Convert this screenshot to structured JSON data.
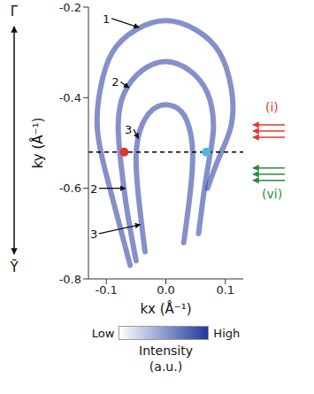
{
  "chart_data": {
    "type": "line",
    "xlabel": "kx (Å⁻¹)",
    "ylabel": "ky (Å⁻¹)",
    "xlim": [
      -0.13,
      0.13
    ],
    "ylim": [
      -0.8,
      -0.2
    ],
    "xticks": [
      -0.1,
      {
        "value": 0,
        "label": "0.0"
      },
      0.1
    ],
    "yticks": [
      -0.2,
      -0.4,
      -0.6,
      -0.8
    ],
    "ky_ends": {
      "top": "Γ̄",
      "bottom": "Ȳ"
    },
    "series": [
      {
        "name": "1",
        "color": "#3346a8",
        "x": [
          -0.06,
          -0.08,
          -0.1,
          -0.115,
          -0.11,
          -0.09,
          -0.05,
          0,
          0.05,
          0.09,
          0.11,
          0.11,
          0.09,
          0.07
        ],
        "values": [
          -0.77,
          -0.67,
          -0.57,
          -0.47,
          -0.38,
          -0.3,
          -0.25,
          -0.23,
          -0.25,
          -0.3,
          -0.38,
          -0.46,
          -0.53,
          -0.6
        ]
      },
      {
        "name": "2",
        "color": "#3346a8",
        "x": [
          -0.05,
          -0.065,
          -0.075,
          -0.08,
          -0.07,
          -0.04,
          0,
          0.04,
          0.07,
          0.08,
          0.075,
          0.065,
          0.055
        ],
        "values": [
          -0.76,
          -0.65,
          -0.55,
          -0.46,
          -0.39,
          -0.34,
          -0.32,
          -0.34,
          -0.39,
          -0.46,
          -0.52,
          -0.6,
          -0.7
        ]
      },
      {
        "name": "3",
        "color": "#3346a8",
        "x": [
          -0.035,
          -0.045,
          -0.05,
          -0.04,
          -0.015,
          0.015,
          0.035,
          0.045,
          0.04,
          0.03
        ],
        "values": [
          -0.74,
          -0.63,
          -0.53,
          -0.46,
          -0.42,
          -0.42,
          -0.45,
          -0.52,
          -0.62,
          -0.72
        ]
      }
    ],
    "cut_ky": -0.52,
    "points": [
      {
        "kx": -0.07,
        "ky": -0.52,
        "color": "#e0332e"
      },
      {
        "kx": 0.068,
        "ky": -0.52,
        "color": "#4fb8dc"
      }
    ],
    "annotations": [
      {
        "text": "(i)",
        "color": "#e8352e"
      },
      {
        "text": "(vi)",
        "color": "#2a8a3a"
      }
    ],
    "colorbar": {
      "low": "Low",
      "high": "High",
      "label": "Intensity",
      "unit": "(a.u.)",
      "colors": [
        "#ffffff",
        "#1f3a9e"
      ]
    }
  }
}
